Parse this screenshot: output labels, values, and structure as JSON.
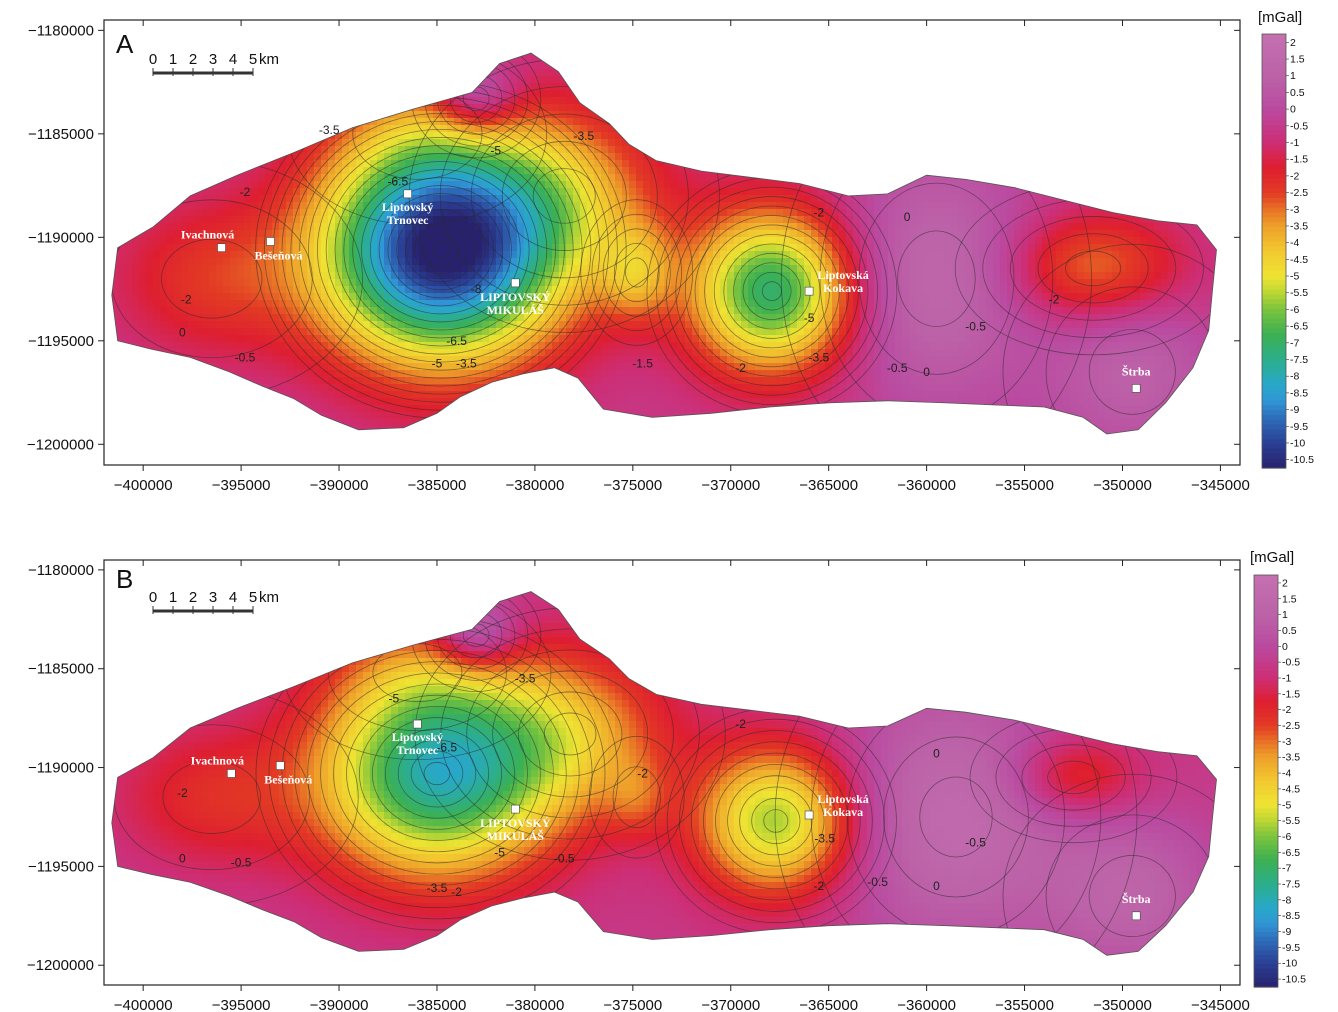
{
  "chart_data": [
    {
      "type": "heatmap",
      "panel_label": "A",
      "x_ticks": [
        -400000,
        -395000,
        -390000,
        -385000,
        -380000,
        -375000,
        -370000,
        -365000,
        -360000,
        -355000,
        -350000,
        -345000
      ],
      "y_ticks": [
        -1180000,
        -1185000,
        -1190000,
        -1195000,
        -1200000
      ],
      "xlim": [
        -402000,
        -344000
      ],
      "ylim": [
        -1201000,
        -1179500
      ],
      "scale_bar": {
        "ticks": [
          "0",
          "1",
          "2",
          "3",
          "4",
          "5"
        ],
        "unit": "km"
      },
      "colorbar": {
        "unit": "[mGal]",
        "range": [
          -10.75,
          2.25
        ],
        "labels": [
          "2",
          "1.5",
          "1",
          "0.5",
          "0",
          "-0.5",
          "-1",
          "-1.5",
          "-2",
          "-2.5",
          "-3",
          "-3.5",
          "-4",
          "-4.5",
          "-5",
          "-5.5",
          "-6",
          "-6.5",
          "-7",
          "-7.5",
          "-8",
          "-8.5",
          "-9",
          "-9.5",
          "-10",
          "-10.5"
        ]
      },
      "towns": [
        {
          "name": "Ivachnová",
          "x": -396000,
          "y": -1190500,
          "lines": [
            "Ivachnová"
          ]
        },
        {
          "name": "Bešeňová",
          "x": -393500,
          "y": -1190200,
          "lines": [
            "Bešeňová"
          ]
        },
        {
          "name": "Liptovský Trnovec",
          "x": -386500,
          "y": -1187900,
          "lines": [
            "Liptovský",
            "Trnovec"
          ]
        },
        {
          "name": "LIPTOVSKÝ MIKULÁŠ",
          "x": -381000,
          "y": -1192200,
          "lines": [
            "LIPTOVSKÝ",
            "MIKULÁŠ"
          ]
        },
        {
          "name": "Liptovská Kokava",
          "x": -366000,
          "y": -1192600,
          "lines": [
            "Liptovská",
            "Kokava"
          ]
        },
        {
          "name": "Štrba",
          "x": -349300,
          "y": -1197300,
          "lines": [
            "Štrba"
          ]
        }
      ],
      "contour_labels": [
        {
          "text": "-3.5",
          "x": -390500,
          "y": -1185000
        },
        {
          "text": "-6.5",
          "x": -387000,
          "y": -1187500
        },
        {
          "text": "-5",
          "x": -382000,
          "y": -1186000
        },
        {
          "text": "-3.5",
          "x": -377500,
          "y": -1185300
        },
        {
          "text": "-8",
          "x": -383000,
          "y": -1192700
        },
        {
          "text": "-6.5",
          "x": -384000,
          "y": -1195200
        },
        {
          "text": "-5",
          "x": -385000,
          "y": -1196300
        },
        {
          "text": "-3.5",
          "x": -383500,
          "y": -1196300
        },
        {
          "text": "-2",
          "x": -397800,
          "y": -1193200
        },
        {
          "text": "0",
          "x": -398000,
          "y": -1194800
        },
        {
          "text": "-0.5",
          "x": -394800,
          "y": -1196000
        },
        {
          "text": "-2",
          "x": -394800,
          "y": -1188000
        },
        {
          "text": "-2",
          "x": -365500,
          "y": -1189000
        },
        {
          "text": "0",
          "x": -361000,
          "y": -1189200
        },
        {
          "text": "-5",
          "x": -366000,
          "y": -1194100
        },
        {
          "text": "-3.5",
          "x": -365500,
          "y": -1196000
        },
        {
          "text": "-2",
          "x": -369500,
          "y": -1196500
        },
        {
          "text": "-0.5",
          "x": -361500,
          "y": -1196500
        },
        {
          "text": "0",
          "x": -360000,
          "y": -1196700
        },
        {
          "text": "-0.5",
          "x": -357500,
          "y": -1194500
        },
        {
          "text": "-2",
          "x": -353500,
          "y": -1193200
        },
        {
          "text": "-1.5",
          "x": -374500,
          "y": -1196300
        }
      ]
    },
    {
      "type": "heatmap",
      "panel_label": "B",
      "x_ticks": [
        -400000,
        -395000,
        -390000,
        -385000,
        -380000,
        -375000,
        -370000,
        -365000,
        -360000,
        -355000,
        -350000,
        -345000
      ],
      "y_ticks": [
        -1180000,
        -1185000,
        -1190000,
        -1195000,
        -1200000
      ],
      "xlim": [
        -402000,
        -344000
      ],
      "ylim": [
        -1201000,
        -1179500
      ],
      "scale_bar": {
        "ticks": [
          "0",
          "1",
          "2",
          "3",
          "4",
          "5"
        ],
        "unit": "km"
      },
      "colorbar": {
        "unit": "[mGal]",
        "range": [
          -10.75,
          2.25
        ],
        "labels": [
          "2",
          "1.5",
          "1",
          "0.5",
          "0",
          "-0.5",
          "-1",
          "-1.5",
          "-2",
          "-2.5",
          "-3",
          "-3.5",
          "-4",
          "-4.5",
          "-5",
          "-5.5",
          "-6",
          "-6.5",
          "-7",
          "-7.5",
          "-8",
          "-8.5",
          "-9",
          "-9.5",
          "-10",
          "-10.5"
        ]
      },
      "towns": [
        {
          "name": "Ivachnová",
          "x": -395500,
          "y": -1190300,
          "lines": [
            "Ivachnová"
          ]
        },
        {
          "name": "Bešeňová",
          "x": -393000,
          "y": -1189900,
          "lines": [
            "Bešeňová"
          ]
        },
        {
          "name": "Liptovský Trnovec",
          "x": -386000,
          "y": -1187800,
          "lines": [
            "Liptovský",
            "Trnovec"
          ]
        },
        {
          "name": "LIPTOVSKÝ MIKULÁŠ",
          "x": -381000,
          "y": -1192100,
          "lines": [
            "LIPTOVSKÝ",
            "MIKULÁŠ"
          ]
        },
        {
          "name": "Liptovská Kokava",
          "x": -366000,
          "y": -1192400,
          "lines": [
            "Liptovská",
            "Kokava"
          ]
        },
        {
          "name": "Štrba",
          "x": -349300,
          "y": -1197500,
          "lines": [
            "Štrba"
          ]
        }
      ],
      "contour_labels": [
        {
          "text": "-3.5",
          "x": -380500,
          "y": -1185700
        },
        {
          "text": "-5",
          "x": -387200,
          "y": -1186700
        },
        {
          "text": "-6.5",
          "x": -384500,
          "y": -1189200
        },
        {
          "text": "-5",
          "x": -381800,
          "y": -1194500
        },
        {
          "text": "-3.5",
          "x": -385000,
          "y": -1196300
        },
        {
          "text": "-2",
          "x": -384000,
          "y": -1196500
        },
        {
          "text": "-2",
          "x": -398000,
          "y": -1191500
        },
        {
          "text": "0",
          "x": -398000,
          "y": -1194800
        },
        {
          "text": "-0.5",
          "x": -395000,
          "y": -1195000
        },
        {
          "text": "-0.5",
          "x": -378500,
          "y": -1194800
        },
        {
          "text": "-2",
          "x": -374500,
          "y": -1190500
        },
        {
          "text": "-2",
          "x": -369500,
          "y": -1188000
        },
        {
          "text": "-3.5",
          "x": -365200,
          "y": -1193800
        },
        {
          "text": "-2",
          "x": -365500,
          "y": -1196200
        },
        {
          "text": "-0.5",
          "x": -362500,
          "y": -1196000
        },
        {
          "text": "0",
          "x": -359500,
          "y": -1196200
        },
        {
          "text": "0",
          "x": -359500,
          "y": -1189500
        },
        {
          "text": "-0.5",
          "x": -357500,
          "y": -1194000
        }
      ]
    }
  ]
}
